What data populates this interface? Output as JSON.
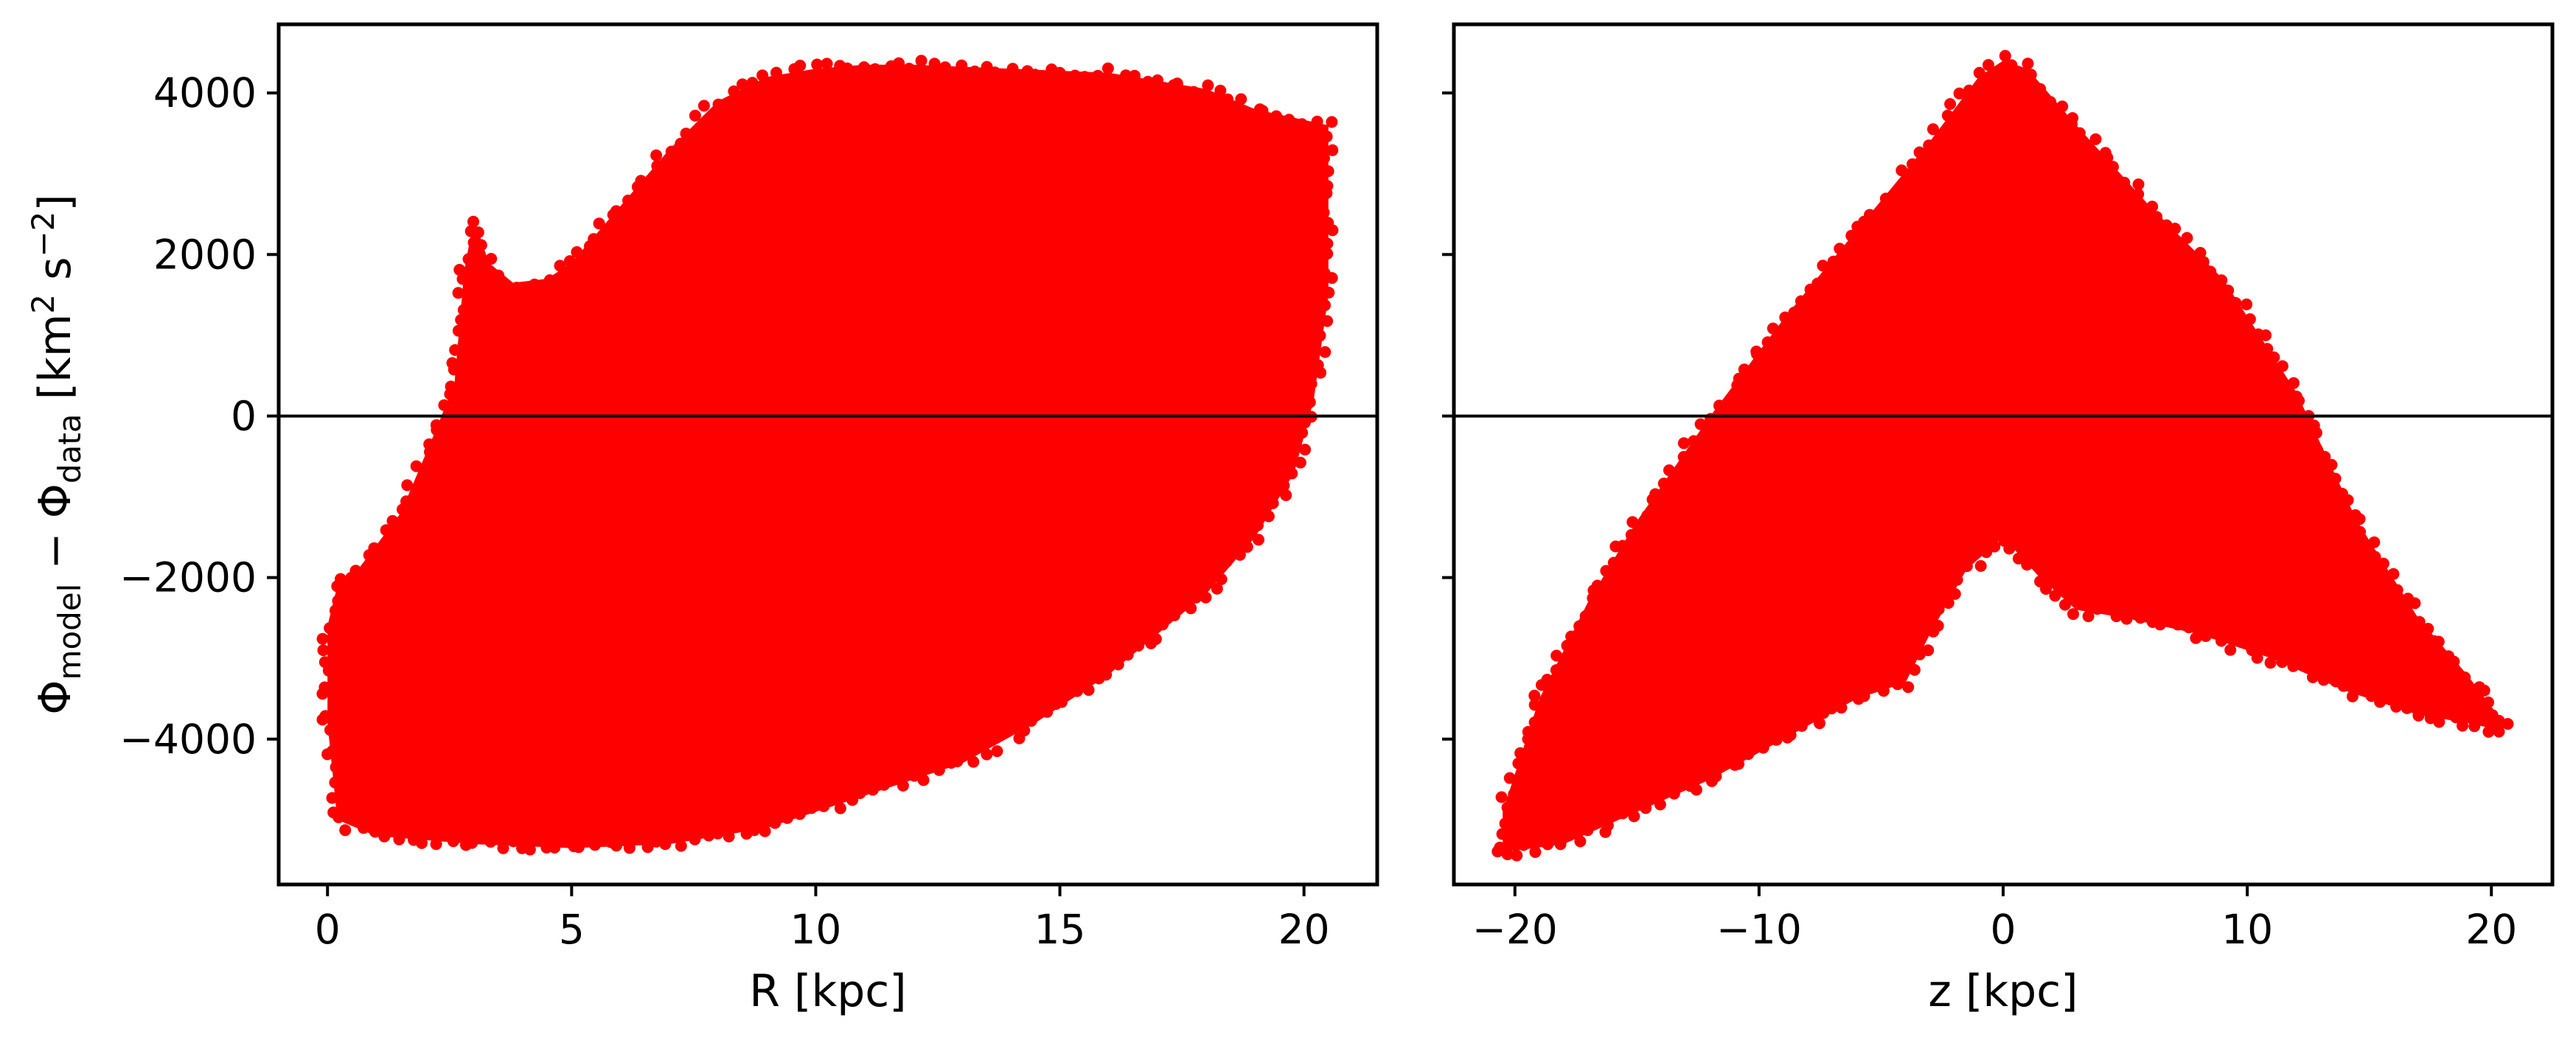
{
  "chart_data": [
    {
      "type": "scatter",
      "xlabel": "R [kpc]",
      "ylabel": "Φmodel − Φdata [km² s⁻²]",
      "ylabel_parts": {
        "phi1": "Φ",
        "sub1": "model",
        "minus": " − ",
        "phi2": "Φ",
        "sub2": "data",
        "unit_open": " [km",
        "sup1": "2",
        "unit_mid": " s",
        "sup2": "−2",
        "unit_close": "]"
      },
      "xlim": [
        -1,
        21.5
      ],
      "ylim": [
        -5800,
        4850
      ],
      "xticks": [
        0,
        5,
        10,
        15,
        20
      ],
      "yticks": [
        -4000,
        -2000,
        0,
        2000,
        4000
      ],
      "xtick_labels": [
        "0",
        "5",
        "10",
        "15",
        "20"
      ],
      "ytick_labels": [
        "−4000",
        "−2000",
        "0",
        "2000",
        "4000"
      ],
      "color": "#ff0000",
      "reference_line_y": 0,
      "grid": false,
      "region_upper": [
        [
          0.2,
          -2100
        ],
        [
          0.5,
          -2000
        ],
        [
          1.0,
          -1600
        ],
        [
          1.5,
          -1200
        ],
        [
          2.2,
          -200
        ],
        [
          2.6,
          400
        ],
        [
          2.8,
          1800
        ],
        [
          3.0,
          2450
        ],
        [
          3.3,
          1900
        ],
        [
          3.8,
          1650
        ],
        [
          4.5,
          1700
        ],
        [
          5.0,
          1900
        ],
        [
          6.0,
          2600
        ],
        [
          7.0,
          3300
        ],
        [
          8.0,
          3900
        ],
        [
          9.0,
          4200
        ],
        [
          10.0,
          4300
        ],
        [
          11.0,
          4350
        ],
        [
          12.0,
          4350
        ],
        [
          14.0,
          4300
        ],
        [
          16.0,
          4250
        ],
        [
          18.0,
          4050
        ],
        [
          19.0,
          3800
        ],
        [
          20.5,
          3600
        ]
      ],
      "region_lower": [
        [
          20.5,
          1500
        ],
        [
          20.2,
          200
        ],
        [
          19.8,
          -700
        ],
        [
          19.0,
          -1500
        ],
        [
          18.0,
          -2200
        ],
        [
          17.0,
          -2700
        ],
        [
          16.0,
          -3200
        ],
        [
          14.5,
          -3800
        ],
        [
          13.0,
          -4300
        ],
        [
          11.0,
          -4700
        ],
        [
          9.0,
          -5100
        ],
        [
          7.0,
          -5300
        ],
        [
          5.0,
          -5350
        ],
        [
          3.0,
          -5300
        ],
        [
          1.0,
          -5200
        ],
        [
          0.2,
          -5000
        ],
        [
          0.0,
          -3800
        ],
        [
          0.0,
          -2600
        ]
      ]
    },
    {
      "type": "scatter",
      "xlabel": "z [kpc]",
      "ylabel": "",
      "xlim": [
        -22.5,
        22.5
      ],
      "ylim": [
        -5800,
        4850
      ],
      "xticks": [
        -20,
        -10,
        0,
        10,
        20
      ],
      "yticks": [
        -4000,
        -2000,
        0,
        2000,
        4000
      ],
      "xtick_labels": [
        "−20",
        "−10",
        "0",
        "10",
        "20"
      ],
      "color": "#ff0000",
      "reference_line_y": 0,
      "grid": false,
      "region_upper": [
        [
          -20.5,
          -5400
        ],
        [
          -20.5,
          -4900
        ],
        [
          -19.0,
          -3500
        ],
        [
          -17.0,
          -2300
        ],
        [
          -15.0,
          -1300
        ],
        [
          -12.0,
          0
        ],
        [
          -9.0,
          1200
        ],
        [
          -6.0,
          2300
        ],
        [
          -3.0,
          3400
        ],
        [
          -1.0,
          4200
        ],
        [
          0.0,
          4400
        ],
        [
          1.0,
          4300
        ],
        [
          3.0,
          3600
        ],
        [
          6.0,
          2600
        ],
        [
          9.0,
          1700
        ],
        [
          12.0,
          300
        ],
        [
          14.5,
          -1300
        ],
        [
          17.0,
          -2500
        ],
        [
          19.0,
          -3200
        ],
        [
          20.5,
          -3800
        ]
      ],
      "region_lower": [
        [
          20.5,
          -3900
        ],
        [
          19.0,
          -3800
        ],
        [
          17.0,
          -3700
        ],
        [
          14.0,
          -3400
        ],
        [
          11.0,
          -3000
        ],
        [
          8.0,
          -2700
        ],
        [
          5.0,
          -2500
        ],
        [
          3.0,
          -2400
        ],
        [
          1.5,
          -2000
        ],
        [
          0.0,
          -1500
        ],
        [
          -1.5,
          -1900
        ],
        [
          -3.0,
          -2700
        ],
        [
          -4.0,
          -3300
        ],
        [
          -6.0,
          -3500
        ],
        [
          -9.0,
          -4000
        ],
        [
          -12.0,
          -4500
        ],
        [
          -15.0,
          -4900
        ],
        [
          -18.0,
          -5300
        ],
        [
          -20.5,
          -5400
        ]
      ]
    }
  ]
}
